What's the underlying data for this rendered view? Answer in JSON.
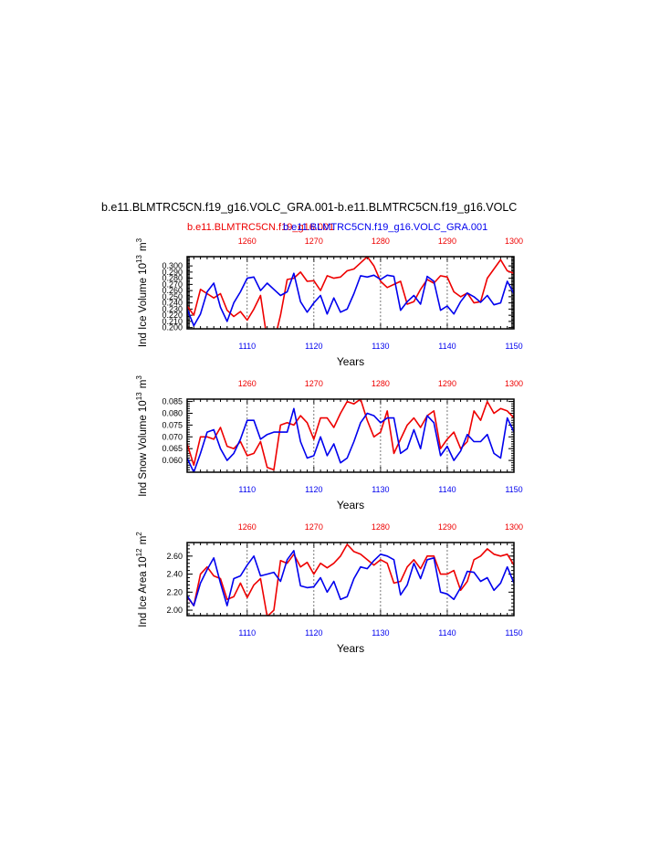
{
  "figure": {
    "title": "b.e11.BLMTRC5CN.f19_g16.VOLC_GRA.001-b.e11.BLMTRC5CN.f19_g16.VOLC",
    "subtitle_red": "b.e11.BLMTRC5CN.f19_g16.001",
    "subtitle_blue": "b.e11.BLMTRC5CN.f19_g16.VOLC_GRA.001",
    "colors": {
      "red": "#ee0000",
      "blue": "#0000ee"
    }
  },
  "chart_data": [
    {
      "type": "line",
      "xlabel": "Years",
      "ylabel": "Ind Ice Volume 10^13 m^3",
      "ylim": [
        0.198,
        0.315
      ],
      "yticks": [
        "0.200",
        "0.210",
        "0.220",
        "0.230",
        "0.240",
        "0.250",
        "0.260",
        "0.270",
        "0.280",
        "0.290",
        "0.300"
      ],
      "xlim_bottom": [
        1101,
        1150
      ],
      "xticks_bottom": [
        "1110",
        "1120",
        "1130",
        "1140",
        "1150"
      ],
      "xticks_top": [
        "1260",
        "1270",
        "1280",
        "1290",
        "1300"
      ],
      "grid": "dashed vertical at labeled ticks",
      "series": [
        {
          "color": "red",
          "axis": "top",
          "x_start": 1251,
          "values": [
            0.235,
            0.22,
            0.262,
            0.255,
            0.248,
            0.255,
            0.228,
            0.218,
            0.226,
            0.212,
            0.23,
            0.252,
            0.18,
            0.175,
            0.22,
            0.278,
            0.28,
            0.29,
            0.275,
            0.276,
            0.26,
            0.284,
            0.28,
            0.282,
            0.292,
            0.295,
            0.305,
            0.315,
            0.3,
            0.275,
            0.265,
            0.27,
            0.275,
            0.238,
            0.242,
            0.262,
            0.278,
            0.272,
            0.284,
            0.282,
            0.258,
            0.25,
            0.256,
            0.24,
            0.242,
            0.28,
            0.295,
            0.31,
            0.292,
            0.288,
            0.29,
            0.278
          ]
        },
        {
          "color": "blue",
          "axis": "bottom",
          "x_start": 1101,
          "values": [
            0.23,
            0.203,
            0.222,
            0.258,
            0.272,
            0.233,
            0.21,
            0.24,
            0.258,
            0.28,
            0.282,
            0.26,
            0.272,
            0.262,
            0.252,
            0.258,
            0.288,
            0.242,
            0.225,
            0.24,
            0.252,
            0.222,
            0.248,
            0.225,
            0.23,
            0.255,
            0.284,
            0.282,
            0.285,
            0.278,
            0.285,
            0.283,
            0.228,
            0.242,
            0.252,
            0.238,
            0.283,
            0.275,
            0.228,
            0.235,
            0.222,
            0.242,
            0.256,
            0.25,
            0.241,
            0.252,
            0.237,
            0.24,
            0.275,
            0.255
          ]
        }
      ]
    },
    {
      "type": "line",
      "xlabel": "Years",
      "ylabel": "Ind Snow Volume 10^13 m^3",
      "ylim": [
        0.055,
        0.086
      ],
      "yticks": [
        "0.060",
        "0.065",
        "0.070",
        "0.075",
        "0.080",
        "0.085"
      ],
      "xlim_bottom": [
        1101,
        1150
      ],
      "xticks_bottom": [
        "1110",
        "1120",
        "1130",
        "1140",
        "1150"
      ],
      "xticks_top": [
        "1260",
        "1270",
        "1280",
        "1290",
        "1300"
      ],
      "grid": "dashed vertical at labeled ticks",
      "series": [
        {
          "color": "red",
          "axis": "top",
          "x_start": 1251,
          "values": [
            0.067,
            0.058,
            0.07,
            0.07,
            0.069,
            0.074,
            0.066,
            0.065,
            0.068,
            0.062,
            0.063,
            0.068,
            0.057,
            0.056,
            0.075,
            0.076,
            0.075,
            0.079,
            0.076,
            0.069,
            0.078,
            0.078,
            0.074,
            0.08,
            0.085,
            0.084,
            0.086,
            0.077,
            0.07,
            0.072,
            0.081,
            0.063,
            0.069,
            0.075,
            0.078,
            0.074,
            0.079,
            0.081,
            0.065,
            0.069,
            0.072,
            0.065,
            0.068,
            0.081,
            0.077,
            0.085,
            0.08,
            0.082,
            0.081,
            0.078
          ]
        },
        {
          "color": "blue",
          "axis": "bottom",
          "x_start": 1101,
          "values": [
            0.061,
            0.055,
            0.063,
            0.072,
            0.073,
            0.065,
            0.06,
            0.063,
            0.069,
            0.077,
            0.077,
            0.069,
            0.071,
            0.072,
            0.072,
            0.072,
            0.082,
            0.068,
            0.061,
            0.062,
            0.07,
            0.062,
            0.067,
            0.059,
            0.061,
            0.068,
            0.076,
            0.08,
            0.079,
            0.076,
            0.078,
            0.078,
            0.063,
            0.065,
            0.073,
            0.065,
            0.079,
            0.076,
            0.062,
            0.066,
            0.06,
            0.064,
            0.071,
            0.068,
            0.068,
            0.071,
            0.063,
            0.061,
            0.078,
            0.072
          ]
        }
      ]
    },
    {
      "type": "line",
      "xlabel": "Years",
      "ylabel": "Ind Ice Area 10^12 m^2",
      "ylim": [
        1.94,
        2.75
      ],
      "yticks": [
        "2.00",
        "2.20",
        "2.40",
        "2.60"
      ],
      "xlim_bottom": [
        1101,
        1150
      ],
      "xticks_bottom": [
        "1110",
        "1120",
        "1130",
        "1140",
        "1150"
      ],
      "xticks_top": [
        "1260",
        "1270",
        "1280",
        "1290",
        "1300"
      ],
      "grid": "dashed vertical at labeled ticks",
      "series": [
        {
          "color": "red",
          "axis": "top",
          "x_start": 1251,
          "values": [
            2.15,
            2.05,
            2.4,
            2.48,
            2.38,
            2.35,
            2.12,
            2.15,
            2.3,
            2.14,
            2.28,
            2.35,
            1.93,
            2.0,
            2.55,
            2.52,
            2.62,
            2.48,
            2.53,
            2.4,
            2.52,
            2.47,
            2.52,
            2.6,
            2.73,
            2.65,
            2.62,
            2.56,
            2.5,
            2.56,
            2.52,
            2.3,
            2.32,
            2.48,
            2.56,
            2.46,
            2.6,
            2.6,
            2.4,
            2.4,
            2.44,
            2.22,
            2.32,
            2.56,
            2.6,
            2.68,
            2.62,
            2.6,
            2.62,
            2.5
          ]
        },
        {
          "color": "blue",
          "axis": "bottom",
          "x_start": 1101,
          "values": [
            2.16,
            2.05,
            2.3,
            2.45,
            2.58,
            2.3,
            2.05,
            2.35,
            2.38,
            2.5,
            2.6,
            2.38,
            2.4,
            2.42,
            2.32,
            2.56,
            2.66,
            2.27,
            2.25,
            2.26,
            2.36,
            2.2,
            2.32,
            2.12,
            2.15,
            2.35,
            2.48,
            2.46,
            2.55,
            2.62,
            2.6,
            2.56,
            2.17,
            2.28,
            2.52,
            2.35,
            2.56,
            2.58,
            2.2,
            2.18,
            2.12,
            2.25,
            2.43,
            2.42,
            2.32,
            2.36,
            2.22,
            2.3,
            2.48,
            2.3
          ]
        }
      ]
    }
  ]
}
